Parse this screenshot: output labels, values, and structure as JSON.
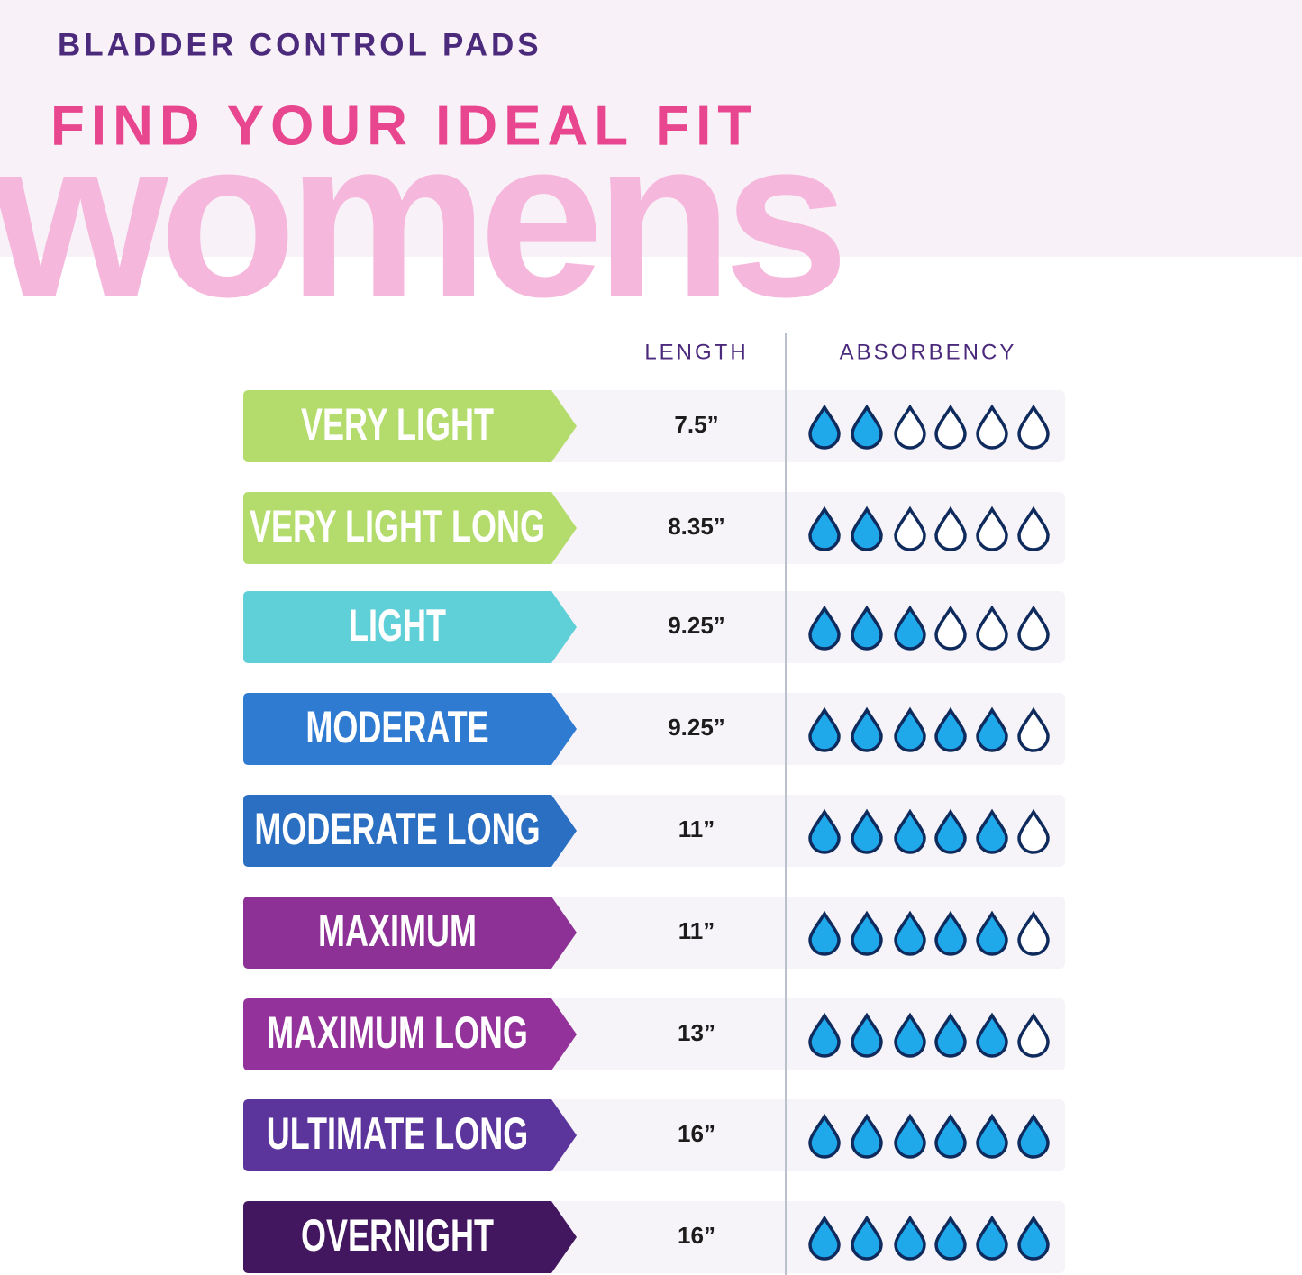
{
  "header": {
    "kicker": "BLADDER CONTROL PADS",
    "title": "FIND YOUR IDEAL FIT",
    "watermark": "womens"
  },
  "table": {
    "columns": [
      "LENGTH",
      "ABSORBENCY"
    ],
    "max_drops": 6,
    "rows": [
      {
        "label": "VERY LIGHT",
        "length": "7.5”",
        "absorbency": 2,
        "color": "#b3dc6c"
      },
      {
        "label": "VERY LIGHT LONG",
        "length": "8.35”",
        "absorbency": 2,
        "color": "#b3dc6c"
      },
      {
        "label": "LIGHT",
        "length": "9.25”",
        "absorbency": 3,
        "color": "#5fd0d8"
      },
      {
        "label": "MODERATE",
        "length": "9.25”",
        "absorbency": 5,
        "color": "#2f7bd2"
      },
      {
        "label": "MODERATE LONG",
        "length": "11”",
        "absorbency": 5,
        "color": "#2b6fc2"
      },
      {
        "label": "MAXIMUM",
        "length": "11”",
        "absorbency": 5,
        "color": "#8e3196"
      },
      {
        "label": "MAXIMUM LONG",
        "length": "13”",
        "absorbency": 5,
        "color": "#93329a"
      },
      {
        "label": "ULTIMATE LONG",
        "length": "16”",
        "absorbency": 6,
        "color": "#5b349c"
      },
      {
        "label": "OVERNIGHT",
        "length": "16”",
        "absorbency": 6,
        "color": "#42175f"
      }
    ]
  }
}
